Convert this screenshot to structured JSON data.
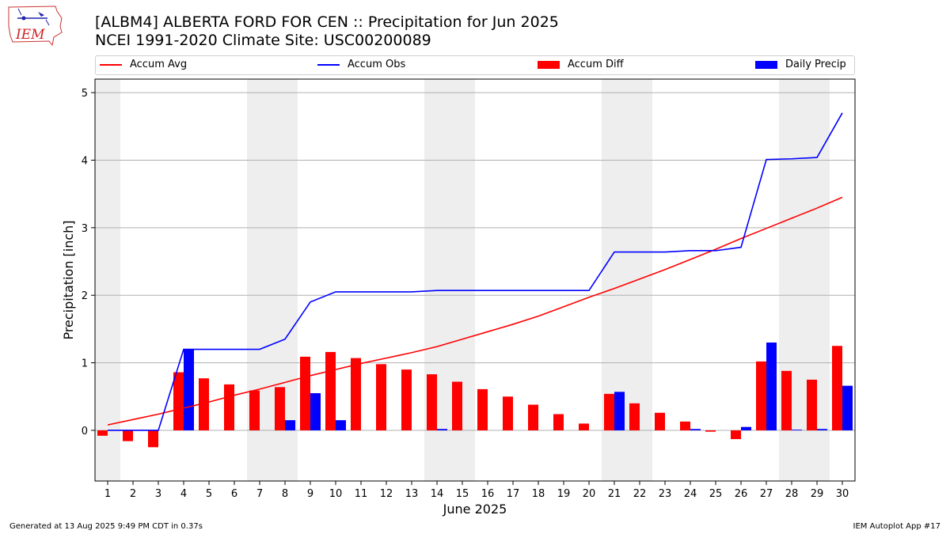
{
  "header": {
    "title_line1": "[ALBM4] ALBERTA FORD FOR CEN :: Precipitation for Jun 2025",
    "title_line2": "NCEI 1991-2020 Climate Site: USC00200089"
  },
  "logo": {
    "text": "IEM",
    "icon": "iem-iowa-logo"
  },
  "colors": {
    "avg": "#ff0000",
    "obs": "#0000ff",
    "diff": "#ff0000",
    "daily": "#0000ff",
    "weekend_shade": "#eeeeee",
    "grid": "#b0b0b0"
  },
  "chart_data": {
    "type": "bar",
    "xlabel": "June 2025",
    "ylabel": "Precipitation [inch]",
    "ylim": [
      -0.75,
      5.2
    ],
    "yticks": [
      0,
      1,
      2,
      3,
      4,
      5
    ],
    "xlim": [
      0.5,
      30.5
    ],
    "days": [
      1,
      2,
      3,
      4,
      5,
      6,
      7,
      8,
      9,
      10,
      11,
      12,
      13,
      14,
      15,
      16,
      17,
      18,
      19,
      20,
      21,
      22,
      23,
      24,
      25,
      26,
      27,
      28,
      29,
      30
    ],
    "weekend_shading": [
      [
        0.5,
        1.5
      ],
      [
        6.5,
        8.5
      ],
      [
        13.5,
        15.5
      ],
      [
        20.5,
        22.5
      ],
      [
        27.5,
        29.5
      ]
    ],
    "grid": "horizontal",
    "legend_placement": "top",
    "series": [
      {
        "name": "Accum Avg",
        "type": "line",
        "values": [
          0.08,
          0.16,
          0.24,
          0.33,
          0.42,
          0.52,
          0.61,
          0.71,
          0.81,
          0.9,
          0.99,
          1.07,
          1.15,
          1.24,
          1.35,
          1.46,
          1.57,
          1.69,
          1.83,
          1.97,
          2.1,
          2.24,
          2.38,
          2.53,
          2.68,
          2.84,
          2.99,
          3.14,
          3.29,
          3.45
        ]
      },
      {
        "name": "Accum Obs",
        "type": "line",
        "values": [
          0.0,
          0.0,
          0.0,
          1.2,
          1.2,
          1.2,
          1.2,
          1.35,
          1.9,
          2.05,
          2.05,
          2.05,
          2.05,
          2.07,
          2.07,
          2.07,
          2.07,
          2.07,
          2.07,
          2.07,
          2.64,
          2.64,
          2.64,
          2.66,
          2.66,
          2.71,
          4.01,
          4.02,
          4.04,
          4.7
        ]
      },
      {
        "name": "Accum Diff",
        "type": "bar",
        "values": [
          -0.08,
          -0.16,
          -0.25,
          0.86,
          0.77,
          0.68,
          0.59,
          0.64,
          1.09,
          1.16,
          1.07,
          0.98,
          0.9,
          0.83,
          0.72,
          0.61,
          0.5,
          0.38,
          0.24,
          0.1,
          0.54,
          0.4,
          0.26,
          0.13,
          -0.02,
          -0.13,
          1.02,
          0.88,
          0.75,
          1.25
        ]
      },
      {
        "name": "Daily Precip",
        "type": "bar",
        "values": [
          0,
          0,
          0,
          1.2,
          0,
          0,
          0,
          0.15,
          0.55,
          0.15,
          0,
          0,
          0,
          0.02,
          0,
          0,
          0,
          0,
          0,
          0,
          0.57,
          0,
          0,
          0.02,
          0,
          0.05,
          1.3,
          0.01,
          0.02,
          0.66
        ]
      }
    ]
  },
  "footer": {
    "left": "Generated at 13 Aug 2025 9:49 PM CDT in 0.37s",
    "right": "IEM Autoplot App #17"
  }
}
